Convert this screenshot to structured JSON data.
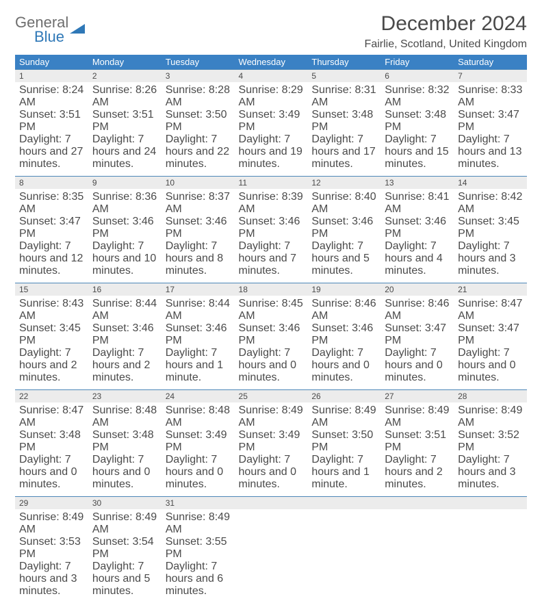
{
  "logo": {
    "line1": "General",
    "line2": "Blue"
  },
  "title": "December 2024",
  "location": "Fairlie, Scotland, United Kingdom",
  "colors": {
    "header_bg": "#3a81c4",
    "header_text": "#ffffff",
    "daynum_bg": "#ececec",
    "rule": "#4c87b8",
    "text": "#4a4a4a",
    "logo_blue": "#2f78b7"
  },
  "dayNames": [
    "Sunday",
    "Monday",
    "Tuesday",
    "Wednesday",
    "Thursday",
    "Friday",
    "Saturday"
  ],
  "weeks": [
    [
      {
        "n": "1",
        "sr": "8:24 AM",
        "ss": "3:51 PM",
        "dl": "7 hours and 27 minutes."
      },
      {
        "n": "2",
        "sr": "8:26 AM",
        "ss": "3:51 PM",
        "dl": "7 hours and 24 minutes."
      },
      {
        "n": "3",
        "sr": "8:28 AM",
        "ss": "3:50 PM",
        "dl": "7 hours and 22 minutes."
      },
      {
        "n": "4",
        "sr": "8:29 AM",
        "ss": "3:49 PM",
        "dl": "7 hours and 19 minutes."
      },
      {
        "n": "5",
        "sr": "8:31 AM",
        "ss": "3:48 PM",
        "dl": "7 hours and 17 minutes."
      },
      {
        "n": "6",
        "sr": "8:32 AM",
        "ss": "3:48 PM",
        "dl": "7 hours and 15 minutes."
      },
      {
        "n": "7",
        "sr": "8:33 AM",
        "ss": "3:47 PM",
        "dl": "7 hours and 13 minutes."
      }
    ],
    [
      {
        "n": "8",
        "sr": "8:35 AM",
        "ss": "3:47 PM",
        "dl": "7 hours and 12 minutes."
      },
      {
        "n": "9",
        "sr": "8:36 AM",
        "ss": "3:46 PM",
        "dl": "7 hours and 10 minutes."
      },
      {
        "n": "10",
        "sr": "8:37 AM",
        "ss": "3:46 PM",
        "dl": "7 hours and 8 minutes."
      },
      {
        "n": "11",
        "sr": "8:39 AM",
        "ss": "3:46 PM",
        "dl": "7 hours and 7 minutes."
      },
      {
        "n": "12",
        "sr": "8:40 AM",
        "ss": "3:46 PM",
        "dl": "7 hours and 5 minutes."
      },
      {
        "n": "13",
        "sr": "8:41 AM",
        "ss": "3:46 PM",
        "dl": "7 hours and 4 minutes."
      },
      {
        "n": "14",
        "sr": "8:42 AM",
        "ss": "3:45 PM",
        "dl": "7 hours and 3 minutes."
      }
    ],
    [
      {
        "n": "15",
        "sr": "8:43 AM",
        "ss": "3:45 PM",
        "dl": "7 hours and 2 minutes."
      },
      {
        "n": "16",
        "sr": "8:44 AM",
        "ss": "3:46 PM",
        "dl": "7 hours and 2 minutes."
      },
      {
        "n": "17",
        "sr": "8:44 AM",
        "ss": "3:46 PM",
        "dl": "7 hours and 1 minute."
      },
      {
        "n": "18",
        "sr": "8:45 AM",
        "ss": "3:46 PM",
        "dl": "7 hours and 0 minutes."
      },
      {
        "n": "19",
        "sr": "8:46 AM",
        "ss": "3:46 PM",
        "dl": "7 hours and 0 minutes."
      },
      {
        "n": "20",
        "sr": "8:46 AM",
        "ss": "3:47 PM",
        "dl": "7 hours and 0 minutes."
      },
      {
        "n": "21",
        "sr": "8:47 AM",
        "ss": "3:47 PM",
        "dl": "7 hours and 0 minutes."
      }
    ],
    [
      {
        "n": "22",
        "sr": "8:47 AM",
        "ss": "3:48 PM",
        "dl": "7 hours and 0 minutes."
      },
      {
        "n": "23",
        "sr": "8:48 AM",
        "ss": "3:48 PM",
        "dl": "7 hours and 0 minutes."
      },
      {
        "n": "24",
        "sr": "8:48 AM",
        "ss": "3:49 PM",
        "dl": "7 hours and 0 minutes."
      },
      {
        "n": "25",
        "sr": "8:49 AM",
        "ss": "3:49 PM",
        "dl": "7 hours and 0 minutes."
      },
      {
        "n": "26",
        "sr": "8:49 AM",
        "ss": "3:50 PM",
        "dl": "7 hours and 1 minute."
      },
      {
        "n": "27",
        "sr": "8:49 AM",
        "ss": "3:51 PM",
        "dl": "7 hours and 2 minutes."
      },
      {
        "n": "28",
        "sr": "8:49 AM",
        "ss": "3:52 PM",
        "dl": "7 hours and 3 minutes."
      }
    ],
    [
      {
        "n": "29",
        "sr": "8:49 AM",
        "ss": "3:53 PM",
        "dl": "7 hours and 3 minutes."
      },
      {
        "n": "30",
        "sr": "8:49 AM",
        "ss": "3:54 PM",
        "dl": "7 hours and 5 minutes."
      },
      {
        "n": "31",
        "sr": "8:49 AM",
        "ss": "3:55 PM",
        "dl": "7 hours and 6 minutes."
      },
      null,
      null,
      null,
      null
    ]
  ],
  "labels": {
    "sunrise": "Sunrise:",
    "sunset": "Sunset:",
    "daylight": "Daylight:"
  }
}
